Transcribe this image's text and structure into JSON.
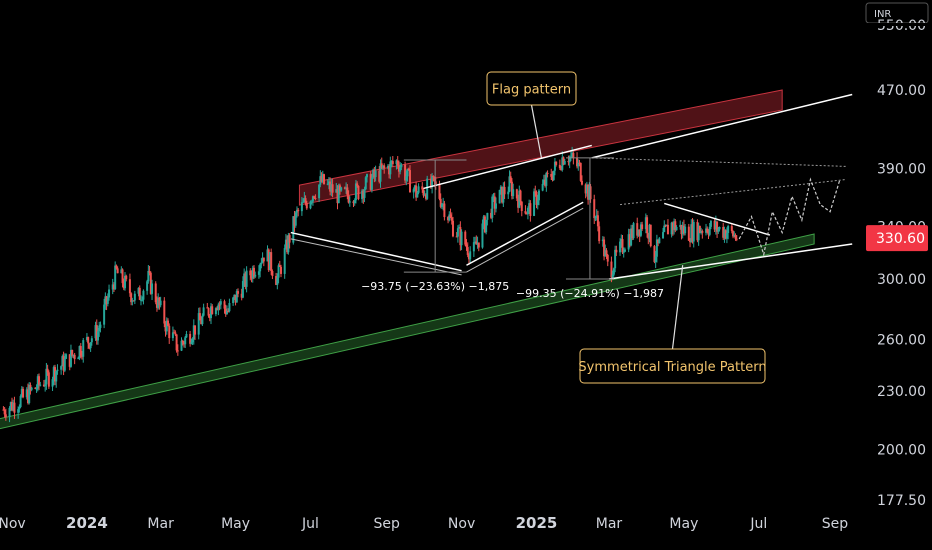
{
  "chart_data": {
    "type": "candlestick",
    "currency": "INR",
    "last_price": "330.60",
    "last_price_value": 330.6,
    "colors": {
      "up": "#26a69a",
      "down": "#ef5350",
      "background": "#000000",
      "axis_text": "#d1d4dc",
      "price_badge": "#f23645",
      "callout_border": "#f2c46d",
      "resistance_channel": "#b22833",
      "support_channel": "#2e7d32",
      "trendline": "#ffffff"
    },
    "y_axis": {
      "ticks": [
        "470.00",
        "390.00",
        "340.00",
        "300.00",
        "260.00",
        "230.00",
        "200.00",
        "177.50"
      ],
      "tick_values": [
        470,
        390,
        340,
        300,
        260,
        230,
        200,
        177.5
      ],
      "partial_top_tick": "550.00",
      "scale": "log"
    },
    "x_axis": {
      "ticks": [
        "Nov",
        "2024",
        "Mar",
        "May",
        "Jul",
        "Sep",
        "Nov",
        "2025",
        "Mar",
        "May",
        "Jul",
        "Sep"
      ],
      "bold_ticks": [
        "2024",
        "2025"
      ],
      "dates": [
        "2023-11-01",
        "2024-01-01",
        "2024-03-01",
        "2024-05-01",
        "2024-07-01",
        "2024-09-01",
        "2024-11-01",
        "2025-01-01",
        "2025-03-01",
        "2025-05-01",
        "2025-07-01",
        "2025-09-01"
      ]
    },
    "price_path": {
      "dates": [
        "2023-10-25",
        "2023-11-10",
        "2023-12-01",
        "2023-12-20",
        "2024-01-10",
        "2024-01-25",
        "2024-02-10",
        "2024-02-20",
        "2024-03-05",
        "2024-03-15",
        "2024-04-01",
        "2024-04-15",
        "2024-04-25",
        "2024-05-10",
        "2024-05-25",
        "2024-06-04",
        "2024-06-20",
        "2024-07-10",
        "2024-07-25",
        "2024-08-10",
        "2024-08-25",
        "2024-09-10",
        "2024-09-25",
        "2024-10-10",
        "2024-10-25",
        "2024-11-10",
        "2024-11-25",
        "2024-12-10",
        "2024-12-25",
        "2025-01-10",
        "2025-01-25",
        "2025-02-05",
        "2025-02-15",
        "2025-03-01",
        "2025-03-15",
        "2025-03-31",
        "2025-04-07",
        "2025-04-20",
        "2025-05-05",
        "2025-05-20",
        "2025-06-05",
        "2025-06-15"
      ],
      "closes": [
        220,
        226,
        238,
        250,
        265,
        305,
        285,
        300,
        270,
        255,
        270,
        285,
        278,
        300,
        320,
        300,
        350,
        378,
        365,
        370,
        385,
        397,
        368,
        375,
        340,
        318,
        355,
        375,
        352,
        380,
        405,
        390,
        360,
        305,
        330,
        345,
        318,
        342,
        335,
        340,
        336,
        330.6
      ]
    },
    "drawings": {
      "resistance_channel": {
        "start": [
          "2024-06-22",
          375
        ],
        "end": [
          "2025-07-20",
          470
        ],
        "band_bottom_offset": 20
      },
      "support_channel": {
        "start": [
          "2023-10-20",
          210
        ],
        "end": [
          "2025-08-15",
          326
        ],
        "band_top_offset": 10
      },
      "upper_trend_extension": {
        "start": [
          "2025-02-15",
          400
        ],
        "end": [
          "2025-09-15",
          465
        ]
      },
      "support_trend_extension": {
        "start": [
          "2025-03-01",
          300
        ],
        "end": [
          "2025-09-15",
          326
        ]
      },
      "flag_pole_left": {
        "start": [
          "2024-06-15",
          335
        ],
        "end": [
          "2024-11-01",
          306
        ]
      },
      "flag_pole_left_inner": {
        "start": [
          "2024-06-15",
          330
        ],
        "end": [
          "2024-11-01",
          303
        ]
      },
      "flag_upper": {
        "start": [
          "2024-10-01",
          372
        ],
        "end": [
          "2025-02-15",
          412
        ]
      },
      "flag_lower": {
        "start": [
          "2024-11-05",
          310
        ],
        "end": [
          "2025-02-08",
          360
        ]
      },
      "flag_lower_inner": {
        "start": [
          "2024-11-05",
          305
        ],
        "end": [
          "2025-02-08",
          355
        ]
      },
      "triangle_upper": {
        "start": [
          "2025-04-15",
          359
        ],
        "end": [
          "2025-07-10",
          333
        ]
      },
      "upper_dotted_channel": {
        "start": [
          "2025-02-15",
          400
        ],
        "end": [
          "2025-09-10",
          392
        ]
      },
      "lower_dotted_channel": {
        "start": [
          "2025-03-10",
          358
        ],
        "end": [
          "2025-09-10",
          380
        ]
      },
      "projection_zigzag": {
        "dates": [
          "2025-06-15",
          "2025-06-25",
          "2025-07-05",
          "2025-07-12",
          "2025-07-20",
          "2025-07-28",
          "2025-08-05",
          "2025-08-12",
          "2025-08-20",
          "2025-08-28",
          "2025-09-05"
        ],
        "values": [
          330,
          348,
          318,
          352,
          335,
          365,
          345,
          380,
          358,
          352,
          380
        ]
      },
      "measure_1": {
        "start": [
          "2024-09-15",
          398
        ],
        "end": [
          "2024-11-05",
          305
        ],
        "label": "−93.75 (−23.63%) −1,875"
      },
      "measure_2": {
        "start": [
          "2025-01-25",
          400
        ],
        "end": [
          "2025-03-05",
          300
        ],
        "label": "−99.35 (−24.91%) −1,987"
      }
    },
    "annotations": [
      {
        "label": "Flag pattern",
        "pointer_to": [
          "2025-01-05",
          400
        ]
      },
      {
        "label": "Symmetrical Triangle Pattern",
        "pointer_to": [
          "2025-04-30",
          310
        ]
      }
    ]
  }
}
